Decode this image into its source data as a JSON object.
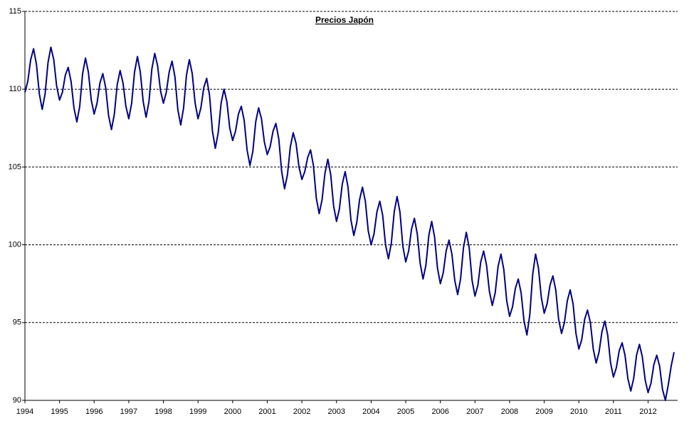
{
  "chart_data": {
    "type": "line",
    "title": "Precios Japón",
    "color": "#000080",
    "grid": true,
    "ylim": [
      90,
      115
    ],
    "yticks": [
      90,
      95,
      100,
      105,
      110,
      115
    ],
    "categories": [
      "1994",
      null,
      null,
      null,
      null,
      null,
      null,
      null,
      null,
      null,
      null,
      null,
      "1995",
      null,
      null,
      null,
      null,
      null,
      null,
      null,
      null,
      null,
      null,
      null,
      "1996",
      null,
      null,
      null,
      null,
      null,
      null,
      null,
      null,
      null,
      null,
      null,
      "1997",
      null,
      null,
      null,
      null,
      null,
      null,
      null,
      null,
      null,
      null,
      null,
      "1998",
      null,
      null,
      null,
      null,
      null,
      null,
      null,
      null,
      null,
      null,
      null,
      "1999",
      null,
      null,
      null,
      null,
      null,
      null,
      null,
      null,
      null,
      null,
      null,
      "2000",
      null,
      null,
      null,
      null,
      null,
      null,
      null,
      null,
      null,
      null,
      null,
      "2001",
      null,
      null,
      null,
      null,
      null,
      null,
      null,
      null,
      null,
      null,
      null,
      "2002",
      null,
      null,
      null,
      null,
      null,
      null,
      null,
      null,
      null,
      null,
      null,
      "2003",
      null,
      null,
      null,
      null,
      null,
      null,
      null,
      null,
      null,
      null,
      null,
      "2004",
      null,
      null,
      null,
      null,
      null,
      null,
      null,
      null,
      null,
      null,
      null,
      "2005",
      null,
      null,
      null,
      null,
      null,
      null,
      null,
      null,
      null,
      null,
      null,
      "2006",
      null,
      null,
      null,
      null,
      null,
      null,
      null,
      null,
      null,
      null,
      null,
      "2007",
      null,
      null,
      null,
      null,
      null,
      null,
      null,
      null,
      null,
      null,
      null,
      "2008",
      null,
      null,
      null,
      null,
      null,
      null,
      null,
      null,
      null,
      null,
      null,
      "2009",
      null,
      null,
      null,
      null,
      null,
      null,
      null,
      null,
      null,
      null,
      null,
      "2010",
      null,
      null,
      null,
      null,
      null,
      null,
      null,
      null,
      null,
      null,
      null,
      "2011",
      null,
      null,
      null,
      null,
      null,
      null,
      null,
      null,
      null,
      null,
      null,
      "2012",
      null,
      null,
      null,
      null,
      null,
      null,
      null,
      null,
      null
    ],
    "values": [
      109.8,
      110.5,
      111.9,
      112.6,
      111.6,
      109.7,
      108.7,
      109.7,
      111.7,
      112.7,
      111.9,
      110.2,
      109.3,
      109.8,
      110.9,
      111.4,
      110.5,
      108.8,
      107.9,
      108.9,
      111.0,
      112.0,
      111.1,
      109.3,
      108.4,
      109.1,
      110.4,
      111.0,
      110.1,
      108.3,
      107.4,
      108.4,
      110.3,
      111.2,
      110.4,
      108.9,
      108.1,
      109.1,
      111.1,
      112.1,
      111.1,
      109.2,
      108.2,
      109.2,
      111.3,
      112.3,
      111.5,
      109.9,
      109.1,
      109.8,
      111.1,
      111.8,
      110.8,
      108.7,
      107.7,
      108.8,
      110.9,
      111.9,
      111.0,
      109.1,
      108.1,
      108.8,
      110.1,
      110.7,
      109.6,
      107.3,
      106.2,
      107.2,
      109.1,
      110.0,
      109.2,
      107.5,
      106.7,
      107.3,
      108.4,
      108.9,
      108.0,
      106.1,
      105.1,
      106.0,
      107.9,
      108.8,
      108.1,
      106.6,
      105.8,
      106.3,
      107.3,
      107.8,
      106.8,
      104.7,
      103.6,
      104.5,
      106.3,
      107.2,
      106.5,
      105.0,
      104.2,
      104.7,
      105.6,
      106.1,
      105.1,
      103.0,
      102.0,
      102.9,
      104.6,
      105.5,
      104.5,
      102.5,
      101.5,
      102.3,
      103.9,
      104.7,
      103.7,
      101.6,
      100.6,
      101.4,
      102.9,
      103.7,
      102.8,
      100.9,
      100.0,
      100.7,
      102.1,
      102.8,
      101.9,
      100.0,
      99.1,
      100.1,
      102.1,
      103.1,
      102.1,
      99.9,
      98.9,
      99.6,
      101.0,
      101.7,
      100.7,
      98.8,
      97.8,
      98.7,
      100.6,
      101.5,
      100.5,
      98.5,
      97.5,
      98.2,
      99.6,
      100.3,
      99.4,
      97.7,
      96.8,
      97.8,
      99.8,
      100.8,
      99.8,
      97.7,
      96.7,
      97.4,
      98.9,
      99.6,
      98.7,
      97.0,
      96.1,
      96.9,
      98.6,
      99.4,
      98.4,
      96.4,
      95.4,
      96.0,
      97.2,
      97.8,
      96.9,
      95.1,
      94.2,
      95.5,
      98.1,
      99.4,
      98.5,
      96.6,
      95.6,
      96.2,
      97.4,
      98.0,
      97.1,
      95.2,
      94.3,
      95.0,
      96.4,
      97.1,
      96.2,
      94.3,
      93.3,
      93.9,
      95.2,
      95.8,
      95.0,
      93.3,
      92.4,
      93.1,
      94.4,
      95.1,
      94.2,
      92.4,
      91.5,
      92.1,
      93.2,
      93.7,
      92.9,
      91.4,
      90.6,
      91.4,
      92.9,
      93.6,
      92.8,
      91.3,
      90.5,
      91.1,
      92.3,
      92.9,
      92.2,
      90.7,
      90.0,
      91.0,
      92.2,
      93.1
    ]
  }
}
